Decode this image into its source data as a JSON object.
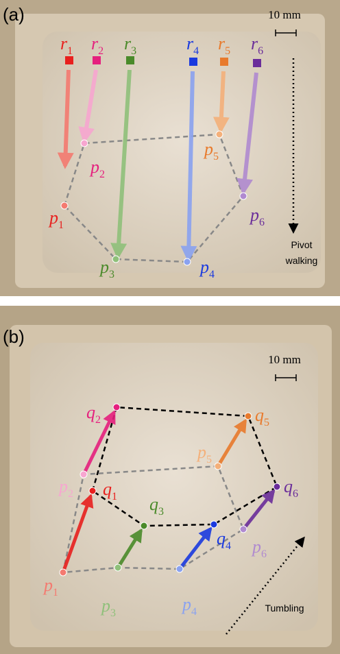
{
  "panels": [
    {
      "label": "(a)",
      "scale": "10 mm",
      "caption": [
        "Pivot",
        "walking"
      ],
      "markers": [
        {
          "base": "r",
          "sub": "1"
        },
        {
          "base": "r",
          "sub": "2"
        },
        {
          "base": "r",
          "sub": "3"
        },
        {
          "base": "r",
          "sub": "4"
        },
        {
          "base": "r",
          "sub": "5"
        },
        {
          "base": "r",
          "sub": "6"
        }
      ],
      "points": [
        {
          "base": "p",
          "sub": "1"
        },
        {
          "base": "p",
          "sub": "2"
        },
        {
          "base": "p",
          "sub": "3"
        },
        {
          "base": "p",
          "sub": "4"
        },
        {
          "base": "p",
          "sub": "5"
        },
        {
          "base": "p",
          "sub": "6"
        }
      ]
    },
    {
      "label": "(b)",
      "scale": "10 mm",
      "caption": [
        "Tumbling"
      ],
      "points": [
        {
          "base": "p",
          "sub": "1"
        },
        {
          "base": "p",
          "sub": "2"
        },
        {
          "base": "p",
          "sub": "3"
        },
        {
          "base": "p",
          "sub": "4"
        },
        {
          "base": "p",
          "sub": "5"
        },
        {
          "base": "p",
          "sub": "6"
        }
      ],
      "moved": [
        {
          "base": "q",
          "sub": "1"
        },
        {
          "base": "q",
          "sub": "2"
        },
        {
          "base": "q",
          "sub": "3"
        },
        {
          "base": "q",
          "sub": "4"
        },
        {
          "base": "q",
          "sub": "5"
        },
        {
          "base": "q",
          "sub": "6"
        }
      ]
    }
  ]
}
